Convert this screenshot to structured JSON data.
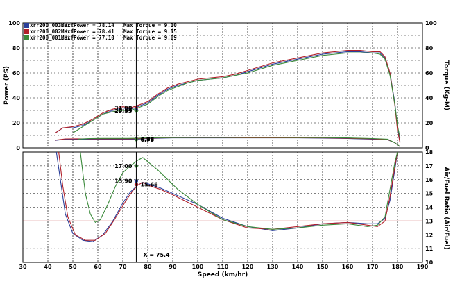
{
  "chart_data": [
    {
      "panel": "power-torque",
      "type": "line",
      "xlabel": "Speed (km/hr)",
      "ylabel": "Power (PS)",
      "ylabel_right": "Torque (Kg-M)",
      "xlim": [
        30,
        190
      ],
      "ylim": [
        0,
        100
      ],
      "ylim_right": [
        0,
        100
      ],
      "x_ticks": [
        "30",
        "40",
        "50",
        "60",
        "70",
        "80",
        "90",
        "100",
        "110",
        "120",
        "130",
        "140",
        "150",
        "160",
        "170",
        "180",
        "190"
      ],
      "y_ticks": [
        "0",
        "20",
        "40",
        "60",
        "80",
        "100"
      ],
      "y_ticks_right": [
        "0",
        "20",
        "40",
        "60",
        "80",
        "100"
      ],
      "grid": true,
      "legend": [
        {
          "file": "xrr200_003.drf",
          "power_text": "Max Power = 78.14",
          "torque_text": "Max Torque = 9.10",
          "color": "#2a3f9a"
        },
        {
          "file": "xrr200_002.drf",
          "power_text": "Max Power = 78.41",
          "torque_text": "Max Torque = 9.15",
          "color": "#b0202a"
        },
        {
          "file": "xrr200_001.drf",
          "power_text": "Max Power = 77.10",
          "torque_text": "Max Torque = 9.09",
          "color": "#3a8a3a"
        }
      ],
      "series": [
        {
          "name": "xrr200_003.drf",
          "kind": "power",
          "color": "#2a3f9a",
          "x": [
            43,
            46,
            50,
            54,
            58,
            62,
            66,
            70,
            73,
            76,
            80,
            84,
            88,
            92,
            96,
            100,
            105,
            110,
            115,
            120,
            125,
            130,
            135,
            140,
            145,
            150,
            155,
            160,
            165,
            170,
            173,
            175,
            177,
            179,
            180,
            181
          ],
          "y": [
            12,
            16,
            16,
            18,
            22,
            27,
            30,
            32,
            31,
            33,
            36,
            42,
            47,
            50,
            52,
            54,
            55,
            56,
            58,
            61,
            64,
            67,
            69,
            71,
            73,
            75,
            76,
            77,
            77,
            76,
            76,
            72,
            60,
            35,
            16,
            5
          ]
        },
        {
          "name": "xrr200_002.drf",
          "kind": "power",
          "color": "#b0202a",
          "x": [
            43,
            46,
            50,
            54,
            58,
            62,
            66,
            70,
            73,
            76,
            80,
            84,
            88,
            92,
            96,
            100,
            105,
            110,
            115,
            120,
            125,
            130,
            135,
            140,
            145,
            150,
            155,
            160,
            165,
            170,
            173,
            175,
            177,
            179,
            180,
            181
          ],
          "y": [
            12,
            16,
            17,
            19,
            23,
            28,
            31,
            33,
            32,
            34,
            37,
            43,
            48,
            51,
            53,
            55,
            56,
            57,
            59,
            62,
            65,
            68,
            70,
            72,
            74,
            76,
            77,
            78,
            78,
            77,
            77,
            73,
            60,
            33,
            14,
            4
          ]
        },
        {
          "name": "xrr200_001.drf",
          "kind": "power",
          "color": "#3a8a3a",
          "x": [
            50,
            54,
            58,
            62,
            66,
            70,
            73,
            76,
            80,
            84,
            88,
            92,
            96,
            100,
            105,
            110,
            115,
            120,
            125,
            130,
            135,
            140,
            145,
            150,
            155,
            160,
            165,
            170,
            173,
            175,
            177,
            179,
            180,
            181
          ],
          "y": [
            12,
            17,
            22,
            27,
            29,
            30,
            30,
            32,
            35,
            41,
            46,
            49,
            52,
            54,
            55,
            56,
            58,
            60,
            63,
            66,
            68,
            70,
            72,
            74,
            75,
            76,
            76,
            76,
            75,
            71,
            58,
            34,
            18,
            8
          ]
        },
        {
          "name": "xrr200_003.drf",
          "kind": "torque",
          "color": "#2a3f9a",
          "x": [
            43,
            47,
            52,
            57,
            62,
            67,
            72,
            76,
            80,
            90,
            100,
            110,
            120,
            130,
            140,
            150,
            160,
            170,
            176,
            179,
            181
          ],
          "y": [
            6,
            7,
            7,
            7,
            7,
            7,
            7,
            7,
            7.5,
            8,
            8,
            8,
            8,
            8,
            8,
            7.8,
            7.5,
            7,
            6.5,
            4,
            1
          ]
        },
        {
          "name": "xrr200_002.drf",
          "kind": "torque",
          "color": "#b0202a",
          "x": [
            43,
            47,
            52,
            57,
            62,
            67,
            72,
            76,
            80,
            90,
            100,
            110,
            120,
            130,
            140,
            150,
            160,
            170,
            176,
            179,
            181
          ],
          "y": [
            6.2,
            7.2,
            7.3,
            7.2,
            7.2,
            7.2,
            7.3,
            7.4,
            7.8,
            8.2,
            8.2,
            8.2,
            8.1,
            8.1,
            8.1,
            8,
            7.7,
            7.2,
            6.7,
            4,
            1
          ]
        },
        {
          "name": "xrr200_001.drf",
          "kind": "torque",
          "color": "#3a8a3a",
          "x": [
            52,
            57,
            62,
            67,
            72,
            76,
            80,
            90,
            100,
            110,
            120,
            130,
            140,
            150,
            160,
            170,
            176,
            179,
            181
          ],
          "y": [
            7,
            7.5,
            7.6,
            7.6,
            7.6,
            7.7,
            8,
            8.3,
            8.4,
            8.4,
            8.4,
            8.4,
            8.3,
            8.2,
            8,
            7.5,
            7,
            4,
            1
          ]
        }
      ],
      "markers": [
        {
          "x": 75.4,
          "y": 31.98,
          "label": "31.98",
          "color": "#b0202a",
          "side": "left"
        },
        {
          "x": 75.4,
          "y": 30.54,
          "label": "30.54",
          "color": "#2a3f9a",
          "side": "left"
        },
        {
          "x": 75.4,
          "y": 29.55,
          "label": "29.55",
          "color": "#3a8a3a",
          "side": "left"
        },
        {
          "x": 75.4,
          "y": 7.28,
          "label": "7.28",
          "color": "#b0202a",
          "side": "right"
        },
        {
          "x": 75.4,
          "y": 6.96,
          "label": "6.96",
          "color": "#2a3f9a",
          "side": "right"
        },
        {
          "x": 75.4,
          "y": 6.73,
          "label": "6.73",
          "color": "#3a8a3a",
          "side": "right"
        }
      ]
    },
    {
      "panel": "air-fuel-ratio",
      "type": "line",
      "xlabel": "Speed (km/hr)",
      "ylabel_right": "Air/Fuel Ratio (Air/Fuel)",
      "xlim": [
        30,
        190
      ],
      "ylim": [
        10,
        18
      ],
      "y_ticks": [
        "10",
        "11",
        "12",
        "13",
        "14",
        "15",
        "16",
        "17",
        "18"
      ],
      "reference_line": {
        "y": 13,
        "color": "#b00000"
      },
      "cursor": {
        "x": 75.4,
        "label": "X = 75.4"
      },
      "grid": true,
      "series": [
        {
          "name": "xrr200_003.drf",
          "color": "#2a3f9a",
          "x": [
            43,
            45,
            47,
            50,
            54,
            58,
            62,
            66,
            70,
            73,
            76,
            78,
            80,
            85,
            90,
            100,
            110,
            120,
            130,
            140,
            150,
            160,
            168,
            172,
            175,
            177,
            179,
            180
          ],
          "y": [
            18.5,
            16,
            13.5,
            12.1,
            11.6,
            11.5,
            12,
            13,
            14.3,
            15.1,
            15.6,
            15.8,
            15.7,
            15.4,
            15,
            14.2,
            13.2,
            12.6,
            12.3,
            12.5,
            12.8,
            12.9,
            12.8,
            12.8,
            13.2,
            14.5,
            16.8,
            18
          ]
        },
        {
          "name": "xrr200_002.drf",
          "color": "#b0202a",
          "x": [
            44,
            46,
            48,
            51,
            55,
            59,
            63,
            67,
            71,
            74,
            76,
            78,
            80,
            85,
            90,
            100,
            110,
            120,
            130,
            140,
            150,
            160,
            168,
            172,
            175,
            177,
            179,
            180
          ],
          "y": [
            18.5,
            15.5,
            13.3,
            12,
            11.6,
            11.6,
            12.1,
            13.2,
            14.4,
            15.2,
            15.6,
            15.8,
            15.6,
            15.3,
            14.9,
            14,
            13.1,
            12.5,
            12.4,
            12.6,
            12.8,
            12.9,
            12.7,
            12.6,
            13,
            14.8,
            17,
            18
          ]
        },
        {
          "name": "xrr200_001.drf",
          "color": "#3a8a3a",
          "x": [
            53,
            55,
            57,
            59,
            61,
            64,
            67,
            70,
            73,
            76,
            78,
            80,
            84,
            88,
            92,
            100,
            110,
            120,
            130,
            140,
            150,
            160,
            168,
            172,
            175,
            177,
            179,
            180
          ],
          "y": [
            18,
            15,
            13.5,
            12.9,
            13.1,
            14.2,
            15.5,
            16.5,
            17,
            17.4,
            17.6,
            17.3,
            16.7,
            16,
            15.3,
            14.2,
            13.1,
            12.6,
            12.4,
            12.5,
            12.7,
            12.8,
            12.6,
            12.7,
            13.3,
            15.3,
            17.3,
            18
          ]
        }
      ],
      "markers": [
        {
          "x": 75.4,
          "y": 17.0,
          "label": "17.00",
          "color": "#3a8a3a",
          "side": "left"
        },
        {
          "x": 75.4,
          "y": 15.9,
          "label": "15.90",
          "color": "#2a3f9a",
          "side": "left"
        },
        {
          "x": 75.4,
          "y": 15.66,
          "label": "15.66",
          "color": "#b0202a",
          "side": "right"
        }
      ]
    }
  ]
}
